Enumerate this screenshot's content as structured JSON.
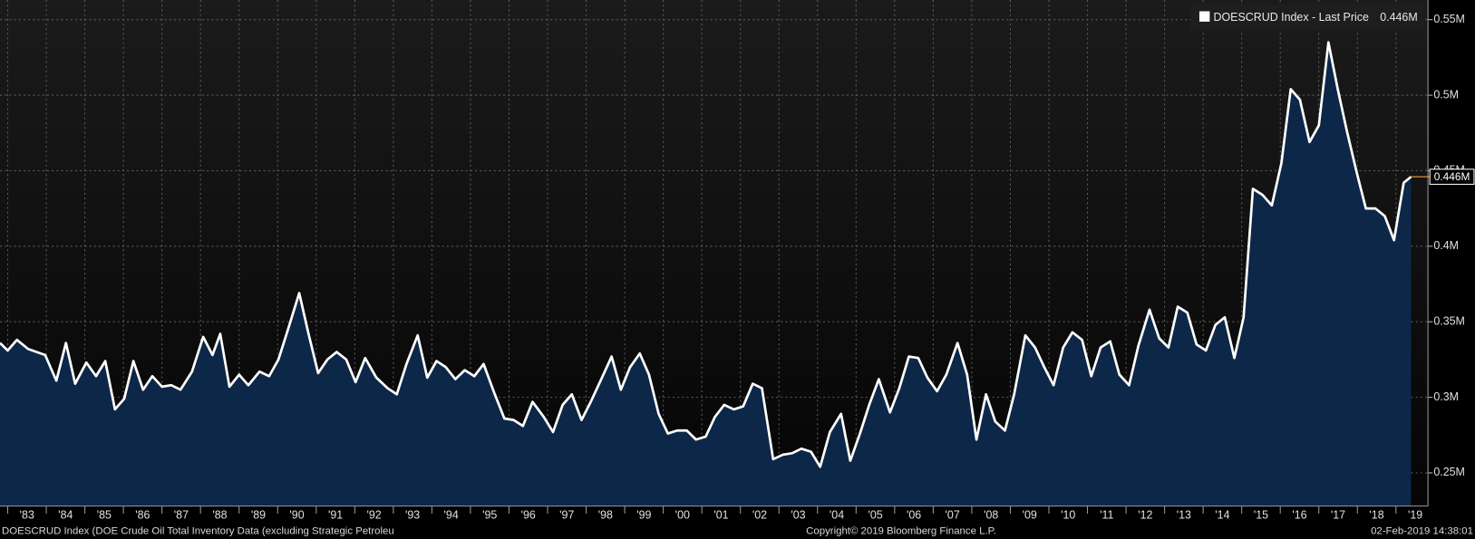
{
  "chart_data": {
    "type": "area",
    "series": [
      {
        "name": "DOESCRUD Index - Last Price",
        "color": "#ffffff",
        "fill": "#0d2748",
        "values": [
          0.336,
          0.331,
          0.338,
          0.332,
          0.328,
          0.311,
          0.336,
          0.309,
          0.323,
          0.314,
          0.324,
          0.292,
          0.299,
          0.324,
          0.305,
          0.314,
          0.307,
          0.308,
          0.305,
          0.317,
          0.34,
          0.328,
          0.342,
          0.307,
          0.315,
          0.308,
          0.317,
          0.314,
          0.325,
          0.345,
          0.369,
          0.342,
          0.316,
          0.325,
          0.33,
          0.325,
          0.31,
          0.326,
          0.313,
          0.306,
          0.302,
          0.322,
          0.341,
          0.313,
          0.324,
          0.32,
          0.312,
          0.318,
          0.314,
          0.322,
          0.302,
          0.286,
          0.285,
          0.281,
          0.297,
          0.287,
          0.277,
          0.295,
          0.302,
          0.285,
          0.297,
          0.313,
          0.327,
          0.305,
          0.32,
          0.329,
          0.315,
          0.289,
          0.276,
          0.278,
          0.278,
          0.272,
          0.274,
          0.287,
          0.295,
          0.292,
          0.294,
          0.309,
          0.306,
          0.259,
          0.262,
          0.263,
          0.266,
          0.264,
          0.254,
          0.277,
          0.289,
          0.258,
          0.276,
          0.295,
          0.312,
          0.29,
          0.306,
          0.327,
          0.326,
          0.313,
          0.304,
          0.315,
          0.336,
          0.315,
          0.272,
          0.302,
          0.284,
          0.278,
          0.302,
          0.341,
          0.333,
          0.32,
          0.308,
          0.333,
          0.343,
          0.338,
          0.314,
          0.333,
          0.337,
          0.315,
          0.308,
          0.334,
          0.358,
          0.339,
          0.333,
          0.36,
          0.356,
          0.335,
          0.331,
          0.348,
          0.353,
          0.326,
          0.353,
          0.438,
          0.434,
          0.427,
          0.455,
          0.504,
          0.497,
          0.469,
          0.48,
          0.535,
          0.504,
          0.476,
          0.449,
          0.425,
          0.425,
          0.42,
          0.404,
          0.442,
          0.446
        ]
      }
    ],
    "x": [
      1982.8,
      1983.0,
      1983.24,
      1983.53,
      1983.97,
      1984.26,
      1984.51,
      1984.75,
      1985.04,
      1985.29,
      1985.53,
      1985.78,
      1986.02,
      1986.26,
      1986.51,
      1986.75,
      1987.0,
      1987.24,
      1987.48,
      1987.78,
      1988.07,
      1988.31,
      1988.51,
      1988.75,
      1989.0,
      1989.24,
      1989.53,
      1989.78,
      1990.02,
      1990.27,
      1990.56,
      1990.8,
      1991.05,
      1991.29,
      1991.53,
      1991.78,
      1992.02,
      1992.27,
      1992.56,
      1992.85,
      1993.09,
      1993.34,
      1993.63,
      1993.88,
      1994.12,
      1994.36,
      1994.61,
      1994.85,
      1995.1,
      1995.34,
      1995.63,
      1995.88,
      1996.12,
      1996.36,
      1996.61,
      1996.9,
      1997.14,
      1997.39,
      1997.63,
      1997.88,
      1998.12,
      1998.41,
      1998.66,
      1998.9,
      1999.14,
      1999.39,
      1999.63,
      1999.88,
      2000.12,
      2000.36,
      2000.61,
      2000.85,
      2001.1,
      2001.34,
      2001.58,
      2001.83,
      2002.07,
      2002.32,
      2002.56,
      2002.85,
      2003.1,
      2003.34,
      2003.58,
      2003.83,
      2004.07,
      2004.32,
      2004.61,
      2004.85,
      2005.1,
      2005.34,
      2005.59,
      2005.88,
      2006.12,
      2006.37,
      2006.61,
      2006.85,
      2007.1,
      2007.34,
      2007.63,
      2007.88,
      2008.12,
      2008.37,
      2008.61,
      2008.86,
      2009.1,
      2009.39,
      2009.64,
      2009.88,
      2010.12,
      2010.37,
      2010.61,
      2010.86,
      2011.1,
      2011.34,
      2011.59,
      2011.83,
      2012.08,
      2012.32,
      2012.61,
      2012.86,
      2013.1,
      2013.34,
      2013.59,
      2013.83,
      2014.07,
      2014.32,
      2014.56,
      2014.81,
      2015.05,
      2015.29,
      2015.54,
      2015.78,
      2016.03,
      2016.27,
      2016.51,
      2016.76,
      2017.0,
      2017.25,
      2017.49,
      2017.73,
      2017.98,
      2018.22,
      2018.47,
      2018.71,
      2018.95,
      2019.2,
      2019.39
    ],
    "xlim": [
      1982.8,
      2019.83
    ],
    "xticks": [
      {
        "value": 1983,
        "label": "'83"
      },
      {
        "value": 1984,
        "label": "'84"
      },
      {
        "value": 1985,
        "label": "'85"
      },
      {
        "value": 1986,
        "label": "'86"
      },
      {
        "value": 1987,
        "label": "'87"
      },
      {
        "value": 1988,
        "label": "'88"
      },
      {
        "value": 1989,
        "label": "'89"
      },
      {
        "value": 1990,
        "label": "'90"
      },
      {
        "value": 1991,
        "label": "'91"
      },
      {
        "value": 1992,
        "label": "'92"
      },
      {
        "value": 1993,
        "label": "'93"
      },
      {
        "value": 1994,
        "label": "'94"
      },
      {
        "value": 1995,
        "label": "'95"
      },
      {
        "value": 1996,
        "label": "'96"
      },
      {
        "value": 1997,
        "label": "'97"
      },
      {
        "value": 1998,
        "label": "'98"
      },
      {
        "value": 1999,
        "label": "'99"
      },
      {
        "value": 2000,
        "label": "'00"
      },
      {
        "value": 2001,
        "label": "'01"
      },
      {
        "value": 2002,
        "label": "'02"
      },
      {
        "value": 2003,
        "label": "'03"
      },
      {
        "value": 2004,
        "label": "'04"
      },
      {
        "value": 2005,
        "label": "'05"
      },
      {
        "value": 2006,
        "label": "'06"
      },
      {
        "value": 2007,
        "label": "'07"
      },
      {
        "value": 2008,
        "label": "'08"
      },
      {
        "value": 2009,
        "label": "'09"
      },
      {
        "value": 2010,
        "label": "'10"
      },
      {
        "value": 2011,
        "label": "'11"
      },
      {
        "value": 2012,
        "label": "'12"
      },
      {
        "value": 2013,
        "label": "'13"
      },
      {
        "value": 2014,
        "label": "'14"
      },
      {
        "value": 2015,
        "label": "'15"
      },
      {
        "value": 2016,
        "label": "'16"
      },
      {
        "value": 2017,
        "label": "'17"
      },
      {
        "value": 2018,
        "label": "'18"
      },
      {
        "value": 2019,
        "label": "'19"
      }
    ],
    "ylim": [
      0.228,
      0.563
    ],
    "yticks": [
      {
        "value": 0.25,
        "label": "0.25M"
      },
      {
        "value": 0.3,
        "label": "0.3M"
      },
      {
        "value": 0.35,
        "label": "0.35M"
      },
      {
        "value": 0.4,
        "label": "0.4M"
      },
      {
        "value": 0.45,
        "label": "0.45M"
      },
      {
        "value": 0.5,
        "label": "0.5M"
      },
      {
        "value": 0.55,
        "label": "0.55M"
      }
    ],
    "y_axis_side": "right",
    "grid": true,
    "legend_position": "top-right",
    "last_price": {
      "value": 0.446,
      "label": "0.446M",
      "color": "#f28c28"
    },
    "footer": {
      "source": "DOESCRUD Index (DOE Crude Oil Total Inventory Data (excluding Strategic Petroleu",
      "copyright": "Copyright© 2019 Bloomberg Finance L.P.",
      "timestamp": "02-Feb-2019 14:38:01"
    }
  }
}
